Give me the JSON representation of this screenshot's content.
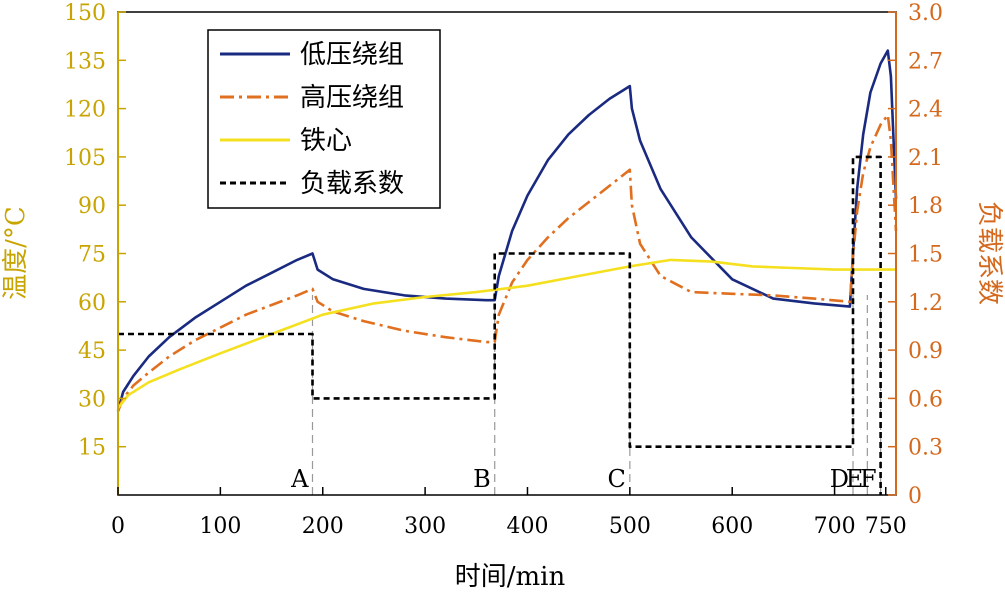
{
  "chart_data": {
    "type": "line",
    "xlabel": "时间/min",
    "ylabel_left": "温度/°C",
    "ylabel_right": "负载系数",
    "xlim": [
      0,
      760
    ],
    "ylim_left": [
      0,
      150
    ],
    "ylim_right": [
      0,
      3.0
    ],
    "x_ticks": [
      0,
      100,
      200,
      300,
      400,
      500,
      600,
      700,
      750
    ],
    "y_ticks_left": [
      15,
      30,
      45,
      60,
      75,
      90,
      105,
      120,
      135,
      150
    ],
    "y_ticks_right": [
      0,
      0.3,
      0.6,
      0.9,
      1.2,
      1.5,
      1.8,
      2.1,
      2.4,
      2.7,
      3.0
    ],
    "y_ticks_right_labels": [
      "0",
      "0.3",
      "0.6",
      "0.9",
      "1.2",
      "1.5",
      "1.8",
      "2.1",
      "2.4",
      "2.7",
      "3.0"
    ],
    "grid": false,
    "legend_position": "top-left",
    "colors": {
      "low_voltage": "#1a2a80",
      "high_voltage": "#e07020",
      "core": "#f5e020",
      "load": "#000000",
      "left_axis": "#c8a400",
      "right_axis": "#d4691e"
    },
    "series": [
      {
        "name": "低压绕组",
        "axis": "left",
        "style": "solid",
        "x": [
          0,
          5,
          15,
          30,
          50,
          75,
          100,
          125,
          150,
          175,
          190,
          195,
          210,
          240,
          280,
          320,
          360,
          368,
          372,
          385,
          400,
          420,
          440,
          460,
          480,
          500,
          502,
          510,
          530,
          560,
          600,
          640,
          680,
          715,
          718,
          722,
          728,
          735,
          745,
          752,
          755,
          760
        ],
        "y": [
          26,
          32,
          37,
          43,
          49,
          55,
          60,
          65,
          69,
          73,
          75,
          70,
          67,
          64,
          62,
          61,
          60.5,
          60.5,
          68,
          82,
          93,
          104,
          112,
          118,
          123,
          127,
          120,
          110,
          95,
          80,
          67,
          61,
          59.5,
          58.5,
          75,
          95,
          112,
          125,
          134,
          138,
          130,
          92
        ]
      },
      {
        "name": "高压绕组",
        "axis": "left",
        "style": "dashdot",
        "x": [
          0,
          5,
          15,
          30,
          50,
          75,
          100,
          125,
          150,
          175,
          190,
          195,
          210,
          240,
          280,
          320,
          360,
          368,
          372,
          385,
          400,
          420,
          440,
          460,
          480,
          500,
          502,
          510,
          530,
          560,
          600,
          640,
          680,
          715,
          718,
          722,
          728,
          735,
          745,
          752,
          755,
          760
        ],
        "y": [
          26,
          30,
          34,
          38,
          43,
          48,
          52,
          56,
          59,
          62,
          64,
          60,
          57,
          54,
          51,
          49,
          47.5,
          47.5,
          56,
          66,
          73,
          80,
          86,
          91,
          96,
          101,
          90,
          78,
          68,
          63,
          62.5,
          62,
          61,
          60,
          74,
          88,
          100,
          108,
          115,
          118,
          110,
          82
        ]
      },
      {
        "name": "铁心",
        "axis": "left",
        "style": "solid",
        "x": [
          0,
          10,
          30,
          60,
          100,
          150,
          200,
          250,
          300,
          350,
          400,
          450,
          500,
          540,
          580,
          620,
          660,
          700,
          740,
          760
        ],
        "y": [
          27,
          31,
          35,
          39,
          44,
          50,
          56,
          59.5,
          61.5,
          63,
          65,
          68,
          71,
          73,
          72.5,
          71,
          70.5,
          70,
          70,
          70
        ]
      },
      {
        "name": "负载系数",
        "axis": "right",
        "style": "dashed",
        "x": [
          0,
          190,
          190,
          368,
          368,
          500,
          500,
          718,
          718,
          745,
          745
        ],
        "y": [
          1.0,
          1.0,
          0.6,
          0.6,
          1.5,
          1.5,
          0.3,
          0.3,
          2.1,
          2.1,
          0.0
        ]
      }
    ],
    "annotations": [
      {
        "label": "A",
        "x": 190
      },
      {
        "label": "B",
        "x": 368
      },
      {
        "label": "C",
        "x": 500
      },
      {
        "label": "D",
        "x": 718
      },
      {
        "label": "E",
        "x": 732
      },
      {
        "label": "F",
        "x": 745
      }
    ]
  }
}
